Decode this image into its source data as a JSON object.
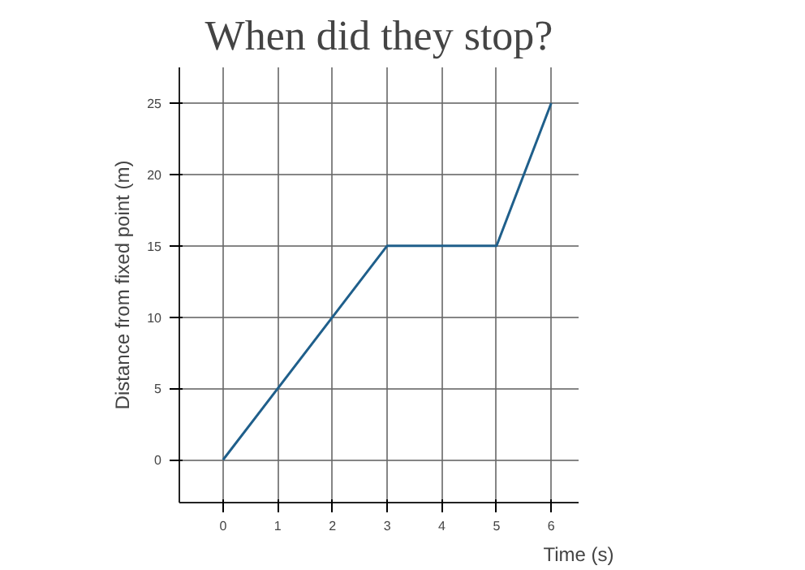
{
  "chart_data": {
    "type": "line",
    "title": "When did they stop?",
    "xlabel": "Time (s)",
    "ylabel": "Distance from fixed point (m)",
    "x": [
      0,
      3,
      5,
      6
    ],
    "series": [
      {
        "color": "#1f5f8b",
        "values": [
          0,
          15,
          15,
          25
        ]
      }
    ],
    "xlim": [
      -0.8,
      6.5
    ],
    "ylim": [
      -3,
      27.5
    ],
    "xticks": [
      0,
      1,
      2,
      3,
      4,
      5,
      6
    ],
    "yticks": [
      0,
      5,
      10,
      15,
      20,
      25
    ],
    "grid": true,
    "line_style": "solid"
  }
}
